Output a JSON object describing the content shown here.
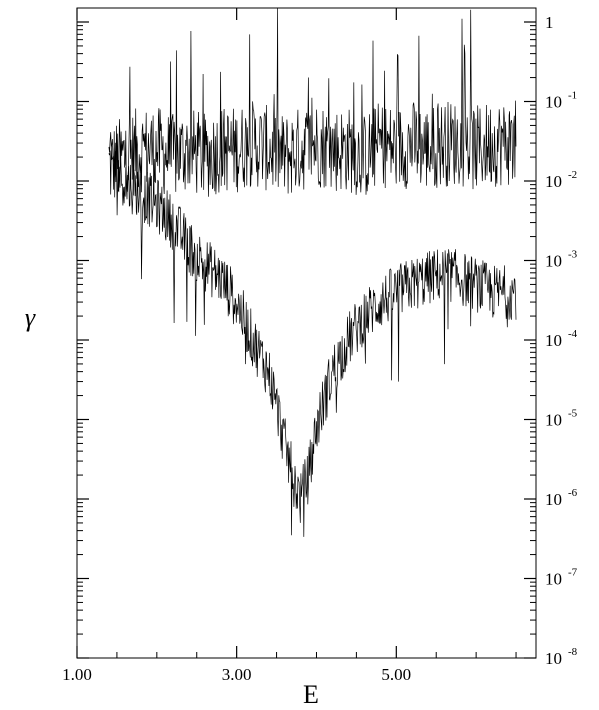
{
  "chart_data": {
    "type": "line",
    "title": "",
    "xlabel": "E",
    "ylabel": "γ",
    "x_scale": "linear",
    "y_scale": "log",
    "xlim": [
      1.0,
      6.75
    ],
    "ylim": [
      1e-08,
      1.5
    ],
    "x_ticks": [
      1.0,
      3.0,
      5.0
    ],
    "x_tick_labels": [
      "1.00",
      "3.00",
      "5.00"
    ],
    "y_ticks": [
      1e-08,
      1e-07,
      1e-06,
      1e-05,
      0.0001,
      0.001,
      0.01,
      0.1,
      1
    ],
    "y_tick_labels": [
      {
        "base": "10",
        "exp": "-8"
      },
      {
        "base": "10",
        "exp": "-7"
      },
      {
        "base": "10",
        "exp": "-6"
      },
      {
        "base": "10",
        "exp": "-5"
      },
      {
        "base": "10",
        "exp": "-4"
      },
      {
        "base": "10",
        "exp": "-3"
      },
      {
        "base": "10",
        "exp": "-2"
      },
      {
        "base": "10",
        "exp": "-1"
      },
      {
        "base": "1",
        "exp": ""
      }
    ],
    "grid": false,
    "legend": "none",
    "line_color": "#000000",
    "series": [
      {
        "x": [
          1.4,
          1.6,
          1.8,
          2.0,
          2.2,
          2.4,
          2.6,
          2.8,
          3.0,
          3.2,
          3.4,
          3.6,
          3.8,
          4.0,
          4.2,
          4.4,
          4.6,
          4.8,
          5.0,
          5.2,
          5.4,
          5.6,
          5.8,
          6.0,
          6.2,
          6.5
        ],
        "y": [
          0.015,
          0.02,
          0.025,
          0.025,
          0.02,
          0.025,
          0.02,
          0.025,
          0.025,
          0.03,
          0.025,
          0.02,
          0.025,
          0.03,
          0.025,
          0.025,
          0.02,
          0.03,
          0.025,
          0.03,
          0.025,
          0.03,
          0.03,
          0.025,
          0.03,
          0.03
        ]
      },
      {
        "x": [
          1.4,
          1.6,
          1.8,
          2.0,
          2.2,
          2.4,
          2.6,
          2.8,
          3.0,
          3.2,
          3.4,
          3.5,
          3.6,
          3.7,
          3.8,
          3.9,
          4.0,
          4.2,
          4.4,
          4.6,
          4.8,
          5.0,
          5.2,
          5.4,
          5.6,
          5.8,
          6.0,
          6.2,
          6.5
        ],
        "y": [
          0.02,
          0.01,
          0.007,
          0.005,
          0.003,
          0.0015,
          0.0009,
          0.0006,
          0.0003,
          0.0001,
          4e-05,
          1.5e-05,
          5e-06,
          2e-06,
          1e-06,
          2e-06,
          8e-06,
          4e-05,
          0.0001,
          0.0002,
          0.0003,
          0.0004,
          0.0005,
          0.0006,
          0.0007,
          0.0006,
          0.0005,
          0.0004,
          0.0004
        ]
      }
    ]
  }
}
